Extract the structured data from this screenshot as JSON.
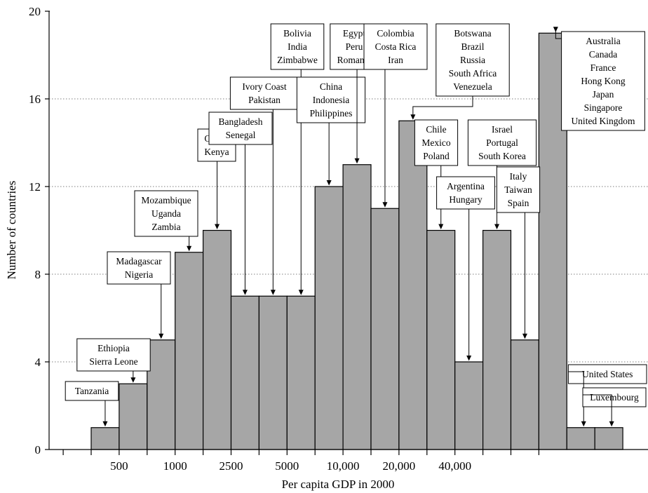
{
  "chart_data": {
    "type": "bar",
    "title": "",
    "xlabel": "Per capita GDP in 2000",
    "ylabel": "Number of countries",
    "ylim": [
      0,
      20
    ],
    "y_ticks": [
      "0",
      "4",
      "8",
      "12",
      "16",
      "20"
    ],
    "x_tick_labels": [
      "500",
      "1000",
      "2500",
      "5000",
      "10,000",
      "20,000",
      "40,000"
    ],
    "grid": true,
    "values": [
      1,
      3,
      5,
      9,
      10,
      7,
      7,
      7,
      12,
      13,
      11,
      15,
      10,
      4,
      10,
      5,
      19,
      1,
      1
    ],
    "annotations": [
      {
        "bar": 0,
        "text": [
          "Tanzania"
        ]
      },
      {
        "bar": 1,
        "text": [
          "Ethiopia",
          "Sierra Leone"
        ]
      },
      {
        "bar": 2,
        "text": [
          "Madagascar",
          "Nigeria"
        ]
      },
      {
        "bar": 3,
        "text": [
          "Mozambique",
          "Uganda",
          "Zambia"
        ]
      },
      {
        "bar": 4,
        "text": [
          "Ghana",
          "Kenya"
        ]
      },
      {
        "bar": 5,
        "text": [
          "Bangladesh",
          "Senegal"
        ]
      },
      {
        "bar": 6,
        "text": [
          "Ivory Coast",
          "Pakistan"
        ]
      },
      {
        "bar": 7,
        "text": [
          "Bolivia",
          "India",
          "Zimbabwe"
        ]
      },
      {
        "bar": 8,
        "text": [
          "China",
          "Indonesia",
          "Philippines"
        ]
      },
      {
        "bar": 9,
        "text": [
          "Egypt",
          "Peru",
          "Romania"
        ]
      },
      {
        "bar": 10,
        "text": [
          "Colombia",
          "Costa Rica",
          "Iran"
        ]
      },
      {
        "bar": 11,
        "text": [
          "Botswana",
          "Brazil",
          "Russia",
          "South Africa",
          "Venezuela"
        ]
      },
      {
        "bar": 12,
        "text": [
          "Chile",
          "Mexico",
          "Poland"
        ]
      },
      {
        "bar": 13,
        "text": [
          "Argentina",
          "Hungary"
        ]
      },
      {
        "bar": 14,
        "text": [
          "Israel",
          "Portugal",
          "South Korea"
        ]
      },
      {
        "bar": 15,
        "text": [
          "Italy",
          "Taiwan",
          "Spain"
        ]
      },
      {
        "bar": 16,
        "text": [
          "Australia",
          "Canada",
          "France",
          "Hong Kong",
          "Japan",
          "Singapore",
          "United Kingdom"
        ]
      },
      {
        "bar": 17,
        "text": [
          "United States"
        ]
      },
      {
        "bar": 18,
        "text": [
          "Luxembourg"
        ]
      }
    ]
  }
}
